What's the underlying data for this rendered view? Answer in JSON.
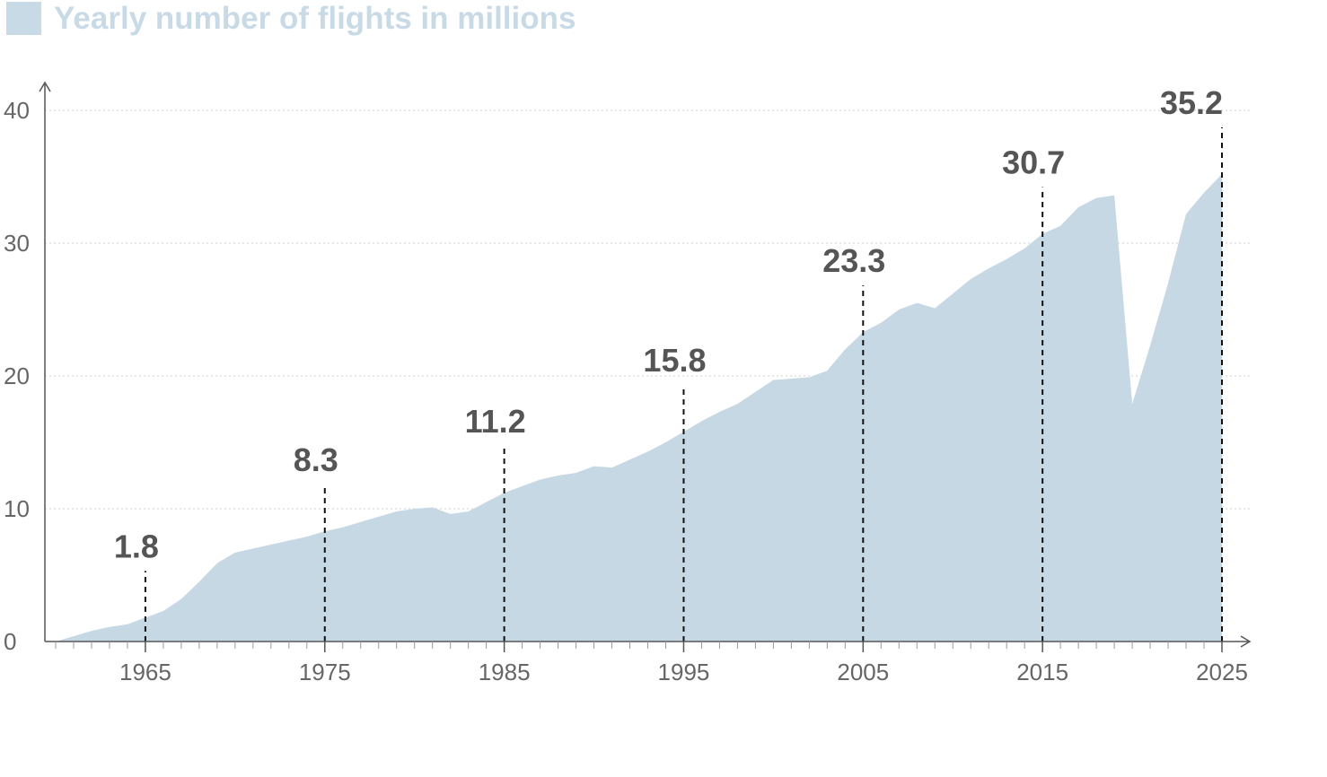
{
  "legend": {
    "label": "Yearly number of flights in millions",
    "color": "#c9dae7"
  },
  "chart_data": {
    "type": "area",
    "title": "Yearly number of flights in millions",
    "xlabel": "",
    "ylabel": "",
    "xlim": [
      1959,
      2026
    ],
    "ylim": [
      0,
      40
    ],
    "grid": true,
    "y_ticks": [
      "0",
      "10",
      "20",
      "30",
      "40"
    ],
    "x_ticks": [
      "1965",
      "1975",
      "1985",
      "1995",
      "2005",
      "2015",
      "2025"
    ],
    "fill_color": "#c6d8e4",
    "series": [
      {
        "x": [
          1960,
          1961,
          1962,
          1963,
          1964,
          1965,
          1966,
          1967,
          1968,
          1969,
          1970,
          1971,
          1972,
          1973,
          1974,
          1975,
          1976,
          1977,
          1978,
          1979,
          1980,
          1981,
          1982,
          1983,
          1984,
          1985,
          1986,
          1987,
          1988,
          1989,
          1990,
          1991,
          1992,
          1993,
          1994,
          1995,
          1996,
          1997,
          1998,
          1999,
          2000,
          2001,
          2002,
          2003,
          2004,
          2005,
          2006,
          2007,
          2008,
          2009,
          2010,
          2011,
          2012,
          2013,
          2014,
          2015,
          2016,
          2017,
          2018,
          2019,
          2020,
          2021,
          2022,
          2023,
          2024,
          2025
        ],
        "values": [
          0,
          0.4,
          0.8,
          1.1,
          1.3,
          1.8,
          2.3,
          3.2,
          4.5,
          5.9,
          6.7,
          7.0,
          7.3,
          7.6,
          7.9,
          8.3,
          8.6,
          9.0,
          9.4,
          9.8,
          10.0,
          10.1,
          9.6,
          9.8,
          10.5,
          11.2,
          11.7,
          12.2,
          12.5,
          12.7,
          13.2,
          13.1,
          13.7,
          14.3,
          15.0,
          15.8,
          16.6,
          17.3,
          17.9,
          18.8,
          19.7,
          19.8,
          19.9,
          20.4,
          22.0,
          23.3,
          24.0,
          25.0,
          25.5,
          25.1,
          26.2,
          27.3,
          28.1,
          28.8,
          29.6,
          30.7,
          31.3,
          32.7,
          33.4,
          33.6,
          17.9,
          22.3,
          27.0,
          32.2,
          33.8,
          35.2
        ]
      }
    ],
    "highlights": [
      {
        "x": 1965,
        "label": "1.8",
        "value": 1.8
      },
      {
        "x": 1975,
        "label": "8.3",
        "value": 8.3
      },
      {
        "x": 1985,
        "label": "11.2",
        "value": 11.2
      },
      {
        "x": 1995,
        "label": "15.8",
        "value": 15.8
      },
      {
        "x": 2005,
        "label": "23.3",
        "value": 23.3
      },
      {
        "x": 2015,
        "label": "30.7",
        "value": 30.7
      },
      {
        "x": 2025,
        "label": "35.2",
        "value": 35.2
      }
    ]
  }
}
